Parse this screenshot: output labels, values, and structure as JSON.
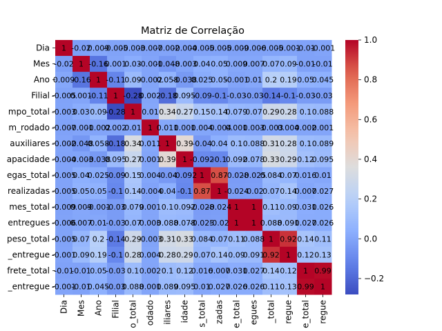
{
  "chart_data": {
    "type": "heatmap",
    "title": "Matriz de Correlação",
    "row_labels": [
      "Dia",
      "Mes",
      "Ano",
      "Filial",
      "mpo_total",
      "m_rodado",
      "auxiliares",
      "apacidade",
      "egas_total",
      "realizadas",
      "mes_total",
      "entregues",
      "peso_total",
      "_entregue",
      "frete_total",
      "_entregue"
    ],
    "col_labels": [
      "Dia",
      "Mes",
      "Ano",
      "Filial",
      "o_total",
      "odado",
      "iliares",
      "idade",
      "s_total",
      "zadas",
      "e_total",
      "egues",
      "_total",
      "regue",
      "e_total",
      "regue"
    ],
    "annotations": [
      [
        "1",
        "-0.02",
        "0.009",
        "-0.005",
        "-0.003",
        "-0.007",
        "-0.002",
        "-0.004",
        "-0.005",
        "-0.005",
        "-0.009",
        "-0.006",
        "-0.005",
        "-0.001",
        "-0.01",
        "-0.001"
      ],
      [
        "-0.02",
        "1",
        "-0.16",
        "0.001",
        "0.03",
        "-0.001",
        "-0.048",
        "-0.003",
        "0.04",
        "0.05",
        "0.009",
        "0.007",
        "0.07",
        "0.09",
        "-0.01",
        "-0.01"
      ],
      [
        "0.009",
        "-0.16",
        "1",
        "-0.11",
        "0.09",
        "-0.002",
        "0.058",
        "-0.038",
        "0.025",
        "0.05",
        "-0.001",
        "0.01",
        "0.2",
        "0.19",
        "0.05",
        "0.045"
      ],
      [
        "-0.005",
        "0.001",
        "-0.11",
        "1",
        "-0.28",
        "0.002",
        "-0.18",
        "0.095",
        "-0.09",
        "-0.1",
        "-0.03",
        "-0.03",
        "-0.14",
        "-0.1",
        "-0.03",
        "-0.03"
      ],
      [
        "-0.003",
        "0.03",
        "0.09",
        "-0.28",
        "1",
        "0.01",
        "0.34",
        "0.27",
        "0.15",
        "0.14",
        "0.079",
        "0.07",
        "0.29",
        "0.28",
        "0.1",
        "0.088"
      ],
      [
        "-0.007",
        "-0.001",
        "-0.002",
        "0.002",
        "0.01",
        "1",
        "0.011",
        "0.001",
        "0.004",
        "-0.004",
        "0.001",
        "0.003",
        "-0.003",
        "0.004",
        "0.002",
        "0.001"
      ],
      [
        "-0.002",
        "-0.048",
        "0.058",
        "-0.18",
        "0.34",
        "0.011",
        "1",
        "0.39",
        "-0.04",
        "0.04",
        "0.1",
        "0.088",
        "0.31",
        "0.28",
        "0.1",
        "0.089"
      ],
      [
        "-0.004",
        "-0.003",
        "-0.038",
        "0.095",
        "0.27",
        "0.001",
        "0.39",
        "1",
        "-0.092",
        "-0.1",
        "0.092",
        "0.078",
        "0.33",
        "0.29",
        "0.12",
        "0.095"
      ],
      [
        "-0.005",
        "0.04",
        "0.025",
        "-0.09",
        "0.15",
        "0.004",
        "-0.04",
        "-0.092",
        "1",
        "0.87",
        "-0.028",
        "-0.025",
        "0.084",
        "0.07",
        "0.016",
        "0.01"
      ],
      [
        "-0.005",
        "0.05",
        "0.05",
        "-0.1",
        "0.14",
        "-0.004",
        "0.04",
        "-0.1",
        "0.87",
        "1",
        "-0.024",
        "-0.02",
        "0.07",
        "0.14",
        "0.007",
        "0.027"
      ],
      [
        "-0.009",
        "0.009",
        "-0.001",
        "-0.03",
        "0.079",
        "0.001",
        "0.1",
        "0.092",
        "-0.028",
        "-0.024",
        "1",
        "1",
        "0.11",
        "0.09",
        "0.031",
        "0.026"
      ],
      [
        "-0.006",
        "0.007",
        "0.01",
        "-0.03",
        "0.07",
        "0.003",
        "0.088",
        "0.078",
        "-0.025",
        "-0.02",
        "1",
        "1",
        "0.088",
        "0.091",
        "0.027",
        "0.026"
      ],
      [
        "-0.005",
        "0.07",
        "0.2",
        "-0.14",
        "0.29",
        "-0.003",
        "0.31",
        "0.33",
        "0.084",
        "0.07",
        "0.11",
        "0.088",
        "1",
        "0.92",
        "0.14",
        "0.11"
      ],
      [
        "-0.001",
        "0.09",
        "0.19",
        "-0.1",
        "0.28",
        "0.004",
        "0.28",
        "0.29",
        "0.07",
        "0.14",
        "0.09",
        "0.091",
        "0.92",
        "1",
        "0.12",
        "0.13"
      ],
      [
        "-0.01",
        "-0.01",
        "0.05",
        "-0.03",
        "0.1",
        "0.002",
        "0.1",
        "0.12",
        "0.016",
        "0.007",
        "0.031",
        "0.027",
        "0.14",
        "0.12",
        "1",
        "0.99"
      ],
      [
        "-0.001",
        "-0.01",
        "0.045",
        "-0.03",
        "0.088",
        "0.001",
        "0.089",
        "0.095",
        "0.01",
        "0.027",
        "0.026",
        "0.026",
        "0.11",
        "0.13",
        "0.99",
        "1"
      ]
    ],
    "values": [
      [
        1,
        -0.02,
        0.009,
        -0.005,
        -0.003,
        -0.007,
        -0.002,
        -0.004,
        -0.005,
        -0.005,
        -0.009,
        -0.006,
        -0.005,
        -0.001,
        -0.01,
        -0.001
      ],
      [
        -0.02,
        1,
        -0.16,
        0.001,
        0.03,
        -0.001,
        -0.048,
        -0.003,
        0.04,
        0.05,
        0.009,
        0.007,
        0.07,
        0.09,
        -0.01,
        -0.01
      ],
      [
        0.009,
        -0.16,
        1,
        -0.11,
        0.09,
        -0.002,
        0.058,
        -0.038,
        0.025,
        0.05,
        -0.001,
        0.01,
        0.2,
        0.19,
        0.05,
        0.045
      ],
      [
        -0.005,
        0.001,
        -0.11,
        1,
        -0.28,
        0.002,
        -0.18,
        0.095,
        -0.09,
        -0.1,
        -0.03,
        -0.03,
        -0.14,
        -0.1,
        -0.03,
        -0.03
      ],
      [
        -0.003,
        0.03,
        0.09,
        -0.28,
        1,
        0.01,
        0.34,
        0.27,
        0.15,
        0.14,
        0.079,
        0.07,
        0.29,
        0.28,
        0.1,
        0.088
      ],
      [
        -0.007,
        -0.001,
        -0.002,
        0.002,
        0.01,
        1,
        0.011,
        0.001,
        0.004,
        -0.004,
        0.001,
        0.003,
        -0.003,
        0.004,
        0.002,
        0.001
      ],
      [
        -0.002,
        -0.048,
        0.058,
        -0.18,
        0.34,
        0.011,
        1,
        0.39,
        -0.04,
        0.04,
        0.1,
        0.088,
        0.31,
        0.28,
        0.1,
        0.089
      ],
      [
        -0.004,
        -0.003,
        -0.038,
        0.095,
        0.27,
        0.001,
        0.39,
        1,
        -0.092,
        -0.1,
        0.092,
        0.078,
        0.33,
        0.29,
        0.12,
        0.095
      ],
      [
        -0.005,
        0.04,
        0.025,
        -0.09,
        0.15,
        0.004,
        -0.04,
        -0.092,
        1,
        0.87,
        -0.028,
        -0.025,
        0.084,
        0.07,
        0.016,
        0.01
      ],
      [
        -0.005,
        0.05,
        0.05,
        -0.1,
        0.14,
        -0.004,
        0.04,
        -0.1,
        0.87,
        1,
        -0.024,
        -0.02,
        0.07,
        0.14,
        0.007,
        0.027
      ],
      [
        -0.009,
        0.009,
        -0.001,
        -0.03,
        0.079,
        0.001,
        0.1,
        0.092,
        -0.028,
        -0.024,
        1,
        1,
        0.11,
        0.09,
        0.031,
        0.026
      ],
      [
        -0.006,
        0.007,
        0.01,
        -0.03,
        0.07,
        0.003,
        0.088,
        0.078,
        -0.025,
        -0.02,
        1,
        1,
        0.088,
        0.091,
        0.027,
        0.026
      ],
      [
        -0.005,
        0.07,
        0.2,
        -0.14,
        0.29,
        -0.003,
        0.31,
        0.33,
        0.084,
        0.07,
        0.11,
        0.088,
        1,
        0.92,
        0.14,
        0.11
      ],
      [
        -0.001,
        0.09,
        0.19,
        -0.1,
        0.28,
        0.004,
        0.28,
        0.29,
        0.07,
        0.14,
        0.09,
        0.091,
        0.92,
        1,
        0.12,
        0.13
      ],
      [
        -0.01,
        -0.01,
        0.05,
        -0.03,
        0.1,
        0.002,
        0.1,
        0.12,
        0.016,
        0.007,
        0.031,
        0.027,
        0.14,
        0.12,
        1,
        0.99
      ],
      [
        -0.001,
        -0.01,
        0.045,
        -0.03,
        0.088,
        0.001,
        0.089,
        0.095,
        0.01,
        0.027,
        0.026,
        0.026,
        0.11,
        0.13,
        0.99,
        1
      ]
    ],
    "colormap": "coolwarm",
    "vmin": -0.28,
    "vmax": 1,
    "colorbar_ticks": [
      -0.2,
      0.0,
      0.2,
      0.4,
      0.6,
      0.8,
      1.0
    ],
    "colorbar_tick_labels": [
      "−0.2",
      "0.0",
      "0.2",
      "0.4",
      "0.6",
      "0.8",
      "1.0"
    ],
    "legend_placement": "right colorbar",
    "grid": false
  }
}
